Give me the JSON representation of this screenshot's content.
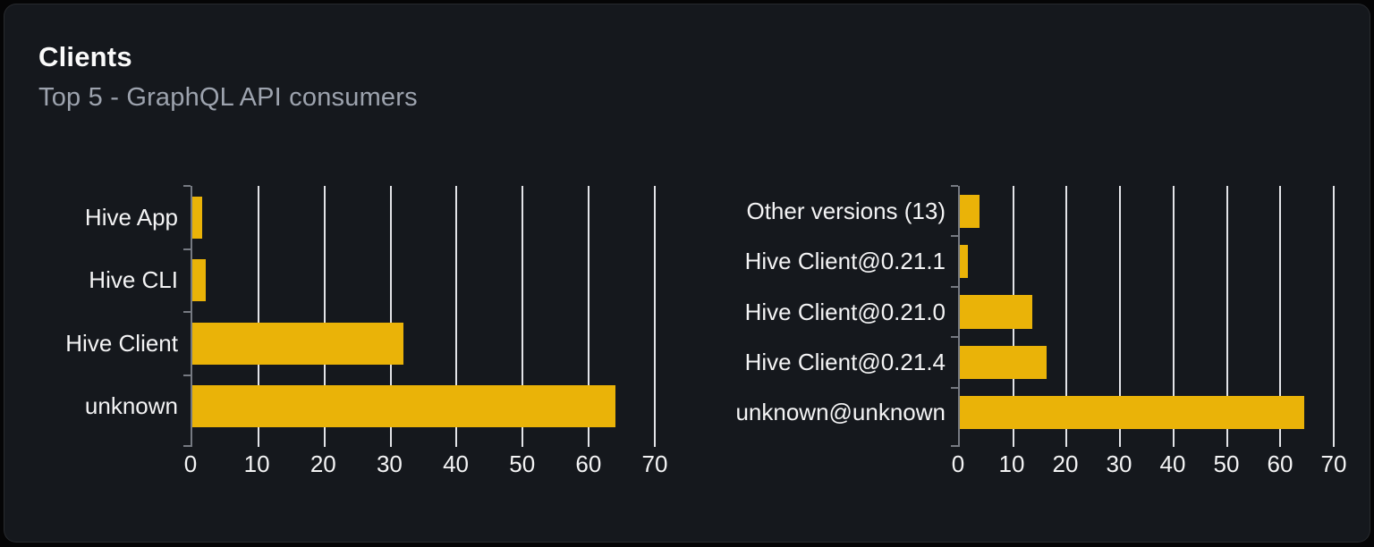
{
  "card": {
    "title": "Clients",
    "subtitle": "Top 5 - GraphQL API consumers"
  },
  "colors": {
    "bar": "#eab308",
    "card_background": "#15181d",
    "page_background": "#050506",
    "gridline": "#e3e4e8",
    "axis_line": "#767a82",
    "title_text": "#fafafa",
    "subtitle_text": "#9da3ae",
    "label_text": "#f4f4f5"
  },
  "chart_data": [
    {
      "type": "bar",
      "orientation": "horizontal",
      "title": "",
      "categories": [
        "Hive App",
        "Hive CLI",
        "Hive Client",
        "unknown"
      ],
      "values": [
        1.5,
        2,
        32,
        64
      ],
      "xlim": [
        0,
        70
      ],
      "xticks": [
        0,
        10,
        20,
        30,
        40,
        50,
        60,
        70
      ],
      "grid": true,
      "legend": false
    },
    {
      "type": "bar",
      "orientation": "horizontal",
      "title": "",
      "categories": [
        "Other versions (13)",
        "Hive Client@0.21.1",
        "Hive Client@0.21.0",
        "Hive Client@0.21.4",
        "unknown@unknown"
      ],
      "values": [
        3.7,
        1.5,
        13.5,
        16.3,
        64.5
      ],
      "xlim": [
        0,
        70
      ],
      "xticks": [
        0,
        10,
        20,
        30,
        40,
        50,
        60,
        70
      ],
      "grid": true,
      "legend": false
    }
  ]
}
